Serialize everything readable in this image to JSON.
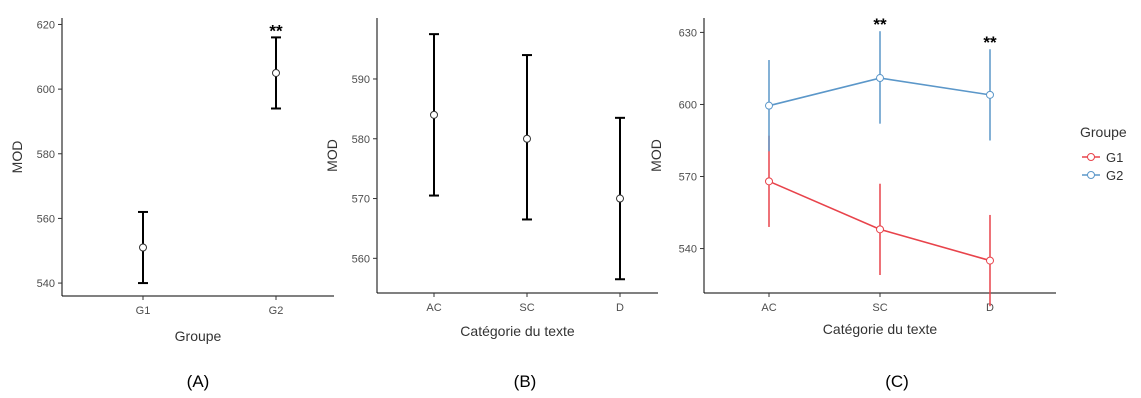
{
  "chart_data": [
    {
      "panel_label": "(A)",
      "type": "scatter",
      "xlabel": "Groupe",
      "ylabel": "MOD",
      "categories": [
        "G1",
        "G2"
      ],
      "ylim": [
        536,
        622
      ],
      "yticks": [
        540,
        560,
        580,
        600,
        620
      ],
      "series": [
        {
          "color": "#000000",
          "values": [
            551,
            605
          ],
          "lower": [
            540,
            594
          ],
          "upper": [
            562,
            616
          ]
        }
      ],
      "annotations": [
        {
          "category": "G2",
          "text": "**"
        }
      ]
    },
    {
      "panel_label": "(B)",
      "type": "scatter",
      "xlabel": "Catégorie du texte",
      "ylabel": "MOD",
      "categories": [
        "AC",
        "SC",
        "D"
      ],
      "ylim": [
        554.2,
        600.2
      ],
      "yticks": [
        560,
        570,
        580,
        590
      ],
      "series": [
        {
          "color": "#000000",
          "values": [
            584,
            580,
            570
          ],
          "lower": [
            570.5,
            566.5,
            556.5
          ],
          "upper": [
            597.5,
            594,
            583.5
          ]
        }
      ],
      "annotations": []
    },
    {
      "panel_label": "(C)",
      "type": "line",
      "xlabel": "Catégorie du texte",
      "ylabel": "MOD",
      "categories": [
        "AC",
        "SC",
        "D"
      ],
      "ylim": [
        521.5,
        636
      ],
      "yticks": [
        540,
        570,
        600,
        630
      ],
      "legend": {
        "title": "Groupe",
        "position": "right"
      },
      "series": [
        {
          "name": "G1",
          "color": "#e8434b",
          "values": [
            568,
            548,
            535
          ],
          "lower": [
            549,
            529,
            516
          ],
          "upper": [
            587,
            567,
            554
          ]
        },
        {
          "name": "G2",
          "color": "#5b97c9",
          "values": [
            599.5,
            611,
            604
          ],
          "lower": [
            580.5,
            592,
            585
          ],
          "upper": [
            618.5,
            630.5,
            623
          ]
        }
      ],
      "annotations": [
        {
          "category": "SC",
          "text": "**"
        },
        {
          "category": "D",
          "text": "**"
        }
      ]
    }
  ]
}
